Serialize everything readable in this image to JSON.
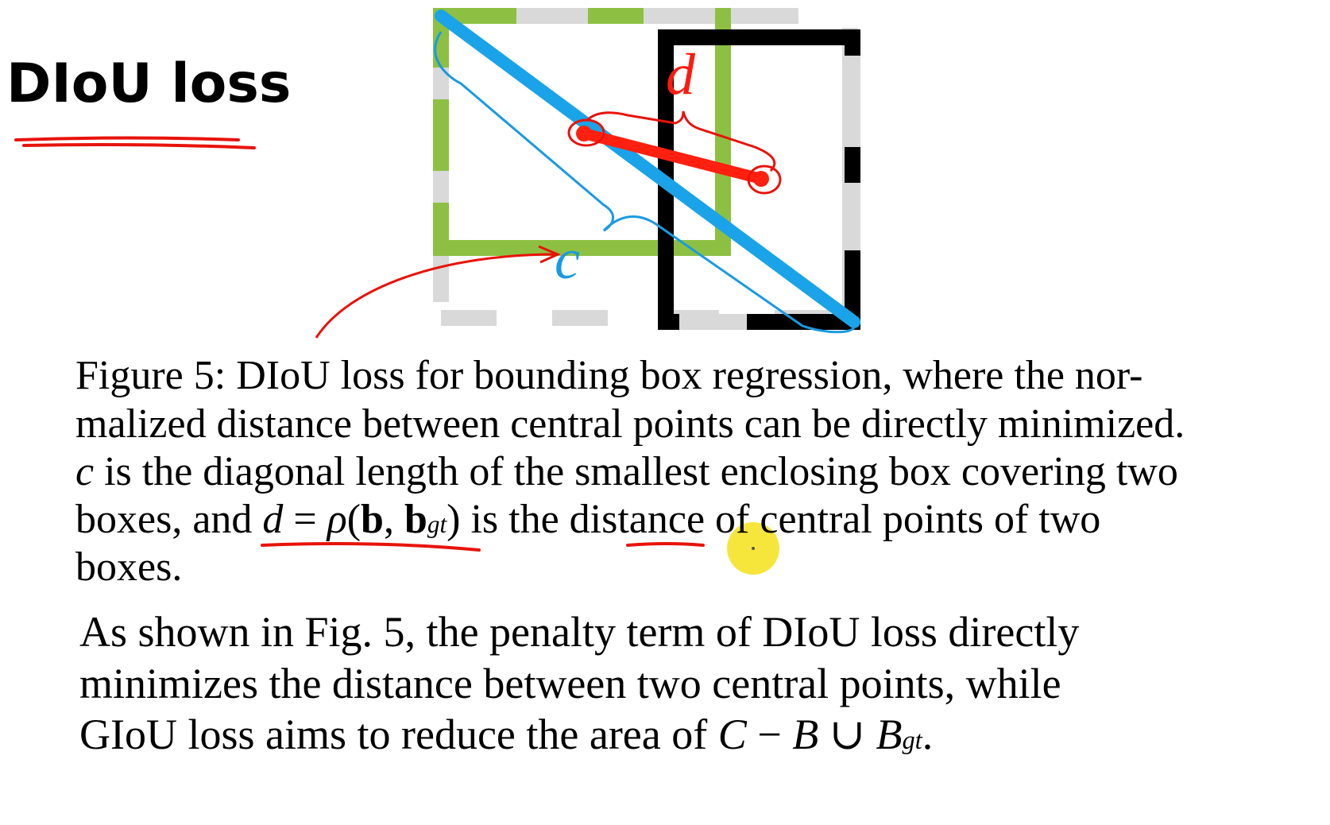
{
  "heading": "DIoU loss",
  "figure": {
    "labels": {
      "d": "d",
      "c": "c"
    },
    "colors": {
      "target_box": "#8dc042",
      "predicted_box": "#000000",
      "enclosing_box": "#d9d9d9",
      "diagonal": "#1aa3e8",
      "distance": "#ff2010",
      "annotation_red": "#e8130a",
      "annotation_blue": "#1a9ae0",
      "cursor_highlight": "#f5e21a"
    }
  },
  "caption": {
    "lines": [
      "Figure 5: DIoU loss for bounding box regression, where the nor-",
      "malized distance between central points can be directly minimized.",
      "is the diagonal length of the smallest enclosing box covering two",
      "is the distance of central points of two",
      "boxes."
    ],
    "c_var": "c",
    "line4_prefix": "boxes, and",
    "formula": {
      "d": "d",
      "eq": " = ",
      "rho": "ρ",
      "open": "(",
      "b": "b",
      "comma": ", ",
      "bgt": "b",
      "gt": "gt",
      "close": ")"
    }
  },
  "paragraph": {
    "lines": [
      "As shown in Fig. 5, the penalty term of DIoU loss directly",
      "minimizes the distance between two central points, while",
      "GIoU loss aims to reduce the area of"
    ],
    "expr": {
      "C": "C",
      "minus": " − ",
      "B": "B",
      "cup": " ∪ ",
      "Bgt": "B",
      "gt": "gt",
      "end": "."
    }
  }
}
